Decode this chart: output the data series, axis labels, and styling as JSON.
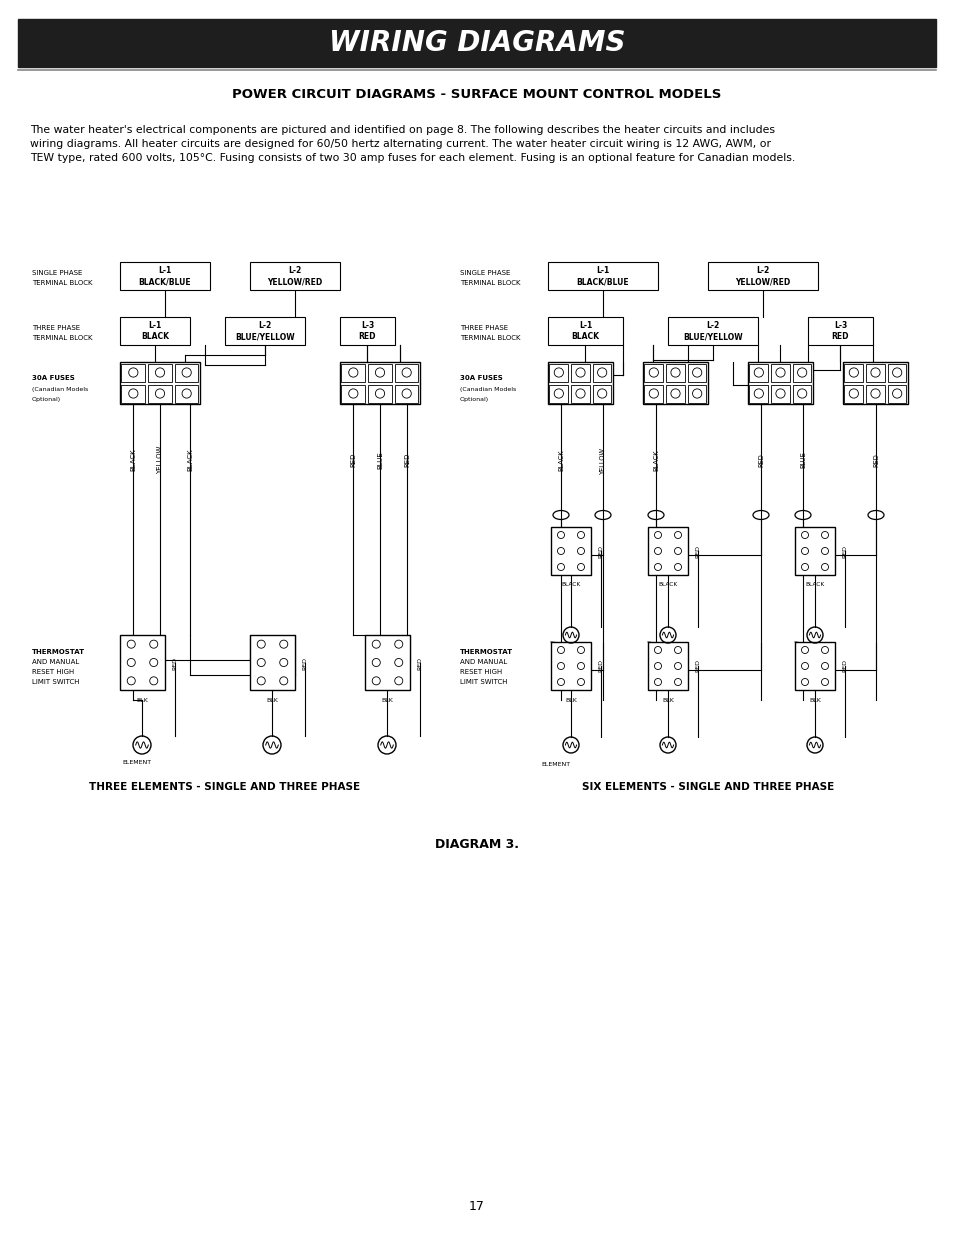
{
  "title": "WIRING DIAGRAMS",
  "subtitle": "POWER CIRCUIT DIAGRAMS - SURFACE MOUNT CONTROL MODELS",
  "body_text_line1": "The water heater's electrical components are pictured and identified on page 8. The following describes the heater circuits and includes",
  "body_text_line2": "wiring diagrams. All heater circuits are designed for 60/50 hertz alternating current. The water heater circuit wiring is 12 AWG, AWM, or",
  "body_text_line3": "TEW type, rated 600 volts, 105°C. Fusing consists of two 30 amp fuses for each element. Fusing is an optional feature for Canadian models.",
  "left_caption": "THREE ELEMENTS - SINGLE AND THREE PHASE",
  "right_caption": "SIX ELEMENTS - SINGLE AND THREE PHASE",
  "diagram_label": "DIAGRAM 3.",
  "page_number": "17",
  "header_bg": "#1e1e1e",
  "header_text_color": "#ffffff",
  "bg_color": "#ffffff"
}
